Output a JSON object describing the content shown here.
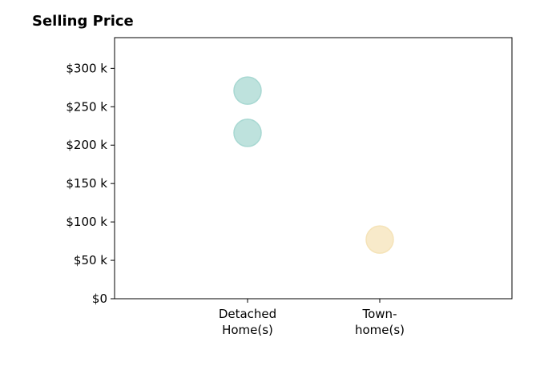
{
  "chart_data": {
    "type": "scatter",
    "title": "Selling Price",
    "xlabel": "",
    "ylabel": "",
    "categories": [
      "Detached\nHome(s)",
      "Town-\nhome(s)"
    ],
    "ylim": [
      0,
      340000
    ],
    "yticks": [
      0,
      50000,
      100000,
      150000,
      200000,
      250000,
      300000
    ],
    "ytick_labels": [
      "$0",
      "$50 k",
      "$100 k",
      "$150 k",
      "$200 k",
      "$250 k",
      "$300 k"
    ],
    "grid": false,
    "points": [
      {
        "category": "Detached\nHome(s)",
        "y": 271000,
        "color": "#a8d8d2"
      },
      {
        "category": "Detached\nHome(s)",
        "y": 216000,
        "color": "#a8d8d2"
      },
      {
        "category": "Town-\nhome(s)",
        "y": 77000,
        "color": "#f5e3b8"
      }
    ],
    "colors": {
      "detached": "#a8d8d2",
      "townhome": "#f5e3b8"
    }
  }
}
